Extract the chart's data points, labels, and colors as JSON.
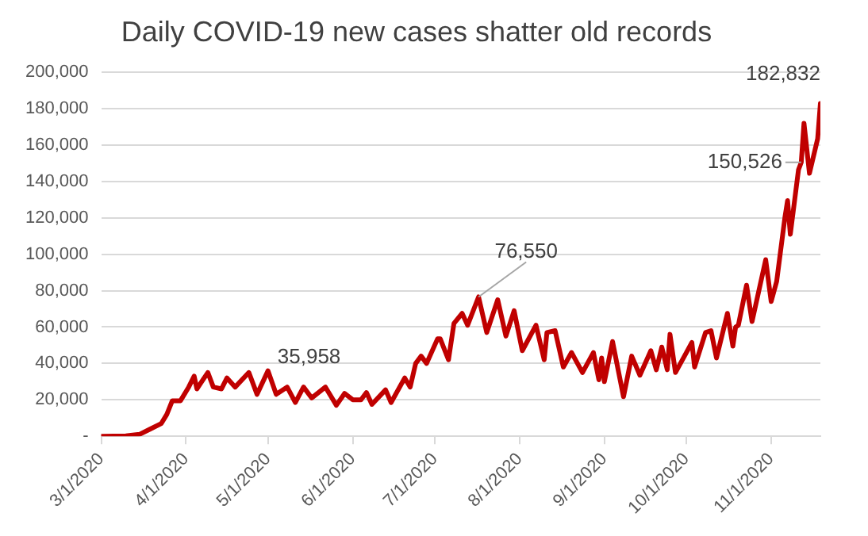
{
  "chart_data": {
    "type": "line",
    "title": "Daily COVID-19 new cases shatter old records",
    "x": [
      "2020-03-01",
      "2020-03-10",
      "2020-03-15",
      "2020-03-19",
      "2020-03-23",
      "2020-03-25",
      "2020-03-27",
      "2020-03-30",
      "2020-04-02",
      "2020-04-04",
      "2020-04-05",
      "2020-04-09",
      "2020-04-11",
      "2020-04-14",
      "2020-04-16",
      "2020-04-19",
      "2020-04-24",
      "2020-04-27",
      "2020-05-01",
      "2020-05-04",
      "2020-05-08",
      "2020-05-11",
      "2020-05-14",
      "2020-05-17",
      "2020-05-22",
      "2020-05-26",
      "2020-05-29",
      "2020-06-01",
      "2020-06-04",
      "2020-06-06",
      "2020-06-08",
      "2020-06-13",
      "2020-06-15",
      "2020-06-20",
      "2020-06-22",
      "2020-06-24",
      "2020-06-26",
      "2020-06-28",
      "2020-07-02",
      "2020-07-03",
      "2020-07-06",
      "2020-07-08",
      "2020-07-11",
      "2020-07-13",
      "2020-07-17",
      "2020-07-20",
      "2020-07-24",
      "2020-07-27",
      "2020-07-30",
      "2020-08-02",
      "2020-08-07",
      "2020-08-10",
      "2020-08-11",
      "2020-08-14",
      "2020-08-17",
      "2020-08-20",
      "2020-08-24",
      "2020-08-28",
      "2020-08-30",
      "2020-08-31",
      "2020-09-01",
      "2020-09-04",
      "2020-09-08",
      "2020-09-11",
      "2020-09-14",
      "2020-09-18",
      "2020-09-20",
      "2020-09-22",
      "2020-09-24",
      "2020-09-25",
      "2020-09-27",
      "2020-10-01",
      "2020-10-03",
      "2020-10-04",
      "2020-10-08",
      "2020-10-10",
      "2020-10-12",
      "2020-10-16",
      "2020-10-18",
      "2020-10-19",
      "2020-10-20",
      "2020-10-23",
      "2020-10-25",
      "2020-10-30",
      "2020-11-01",
      "2020-11-03",
      "2020-11-06",
      "2020-11-07",
      "2020-11-08",
      "2020-11-11",
      "2020-11-12",
      "2020-11-13",
      "2020-11-15",
      "2020-11-18",
      "2020-11-19"
    ],
    "series": [
      {
        "color": "#c00000",
        "values": [
          0,
          200,
          1000,
          4000,
          7000,
          12000,
          19500,
          19500,
          27000,
          33000,
          26000,
          35000,
          27000,
          26000,
          32000,
          27000,
          35000,
          23000,
          35958,
          23000,
          27000,
          18500,
          27000,
          21000,
          27000,
          17000,
          23500,
          20000,
          20000,
          24000,
          17500,
          25500,
          18500,
          32000,
          27000,
          40000,
          44000,
          40000,
          53500,
          53500,
          42000,
          62000,
          67500,
          61000,
          76550,
          57000,
          75000,
          55000,
          69000,
          47000,
          61000,
          42000,
          57000,
          58000,
          38000,
          46000,
          35000,
          46000,
          31000,
          43000,
          30000,
          52000,
          21700,
          44000,
          33500,
          47000,
          36500,
          49000,
          36500,
          56000,
          35000,
          46000,
          51500,
          38000,
          57000,
          58000,
          43000,
          67500,
          49500,
          60000,
          61000,
          83000,
          63000,
          97000,
          74000,
          85000,
          120000,
          129500,
          111000,
          146500,
          150526,
          172000,
          144500,
          163500,
          182832
        ]
      }
    ],
    "xlim": [
      "2020-03-01",
      "2020-11-19"
    ],
    "xticks": [
      {
        "value": "2020-03-01",
        "label": "3/1/2020"
      },
      {
        "value": "2020-04-01",
        "label": "4/1/2020"
      },
      {
        "value": "2020-05-01",
        "label": "5/1/2020"
      },
      {
        "value": "2020-06-01",
        "label": "6/1/2020"
      },
      {
        "value": "2020-07-01",
        "label": "7/1/2020"
      },
      {
        "value": "2020-08-01",
        "label": "8/1/2020"
      },
      {
        "value": "2020-09-01",
        "label": "9/1/2020"
      },
      {
        "value": "2020-10-01",
        "label": "10/1/2020"
      },
      {
        "value": "2020-11-01",
        "label": "11/1/2020"
      }
    ],
    "ylim": [
      0,
      200000
    ],
    "yticks": [
      {
        "value": 0,
        "label": "-"
      },
      {
        "value": 20000,
        "label": "20,000"
      },
      {
        "value": 40000,
        "label": "40,000"
      },
      {
        "value": 60000,
        "label": "60,000"
      },
      {
        "value": 80000,
        "label": "80,000"
      },
      {
        "value": 100000,
        "label": "100,000"
      },
      {
        "value": 120000,
        "label": "120,000"
      },
      {
        "value": 140000,
        "label": "140,000"
      },
      {
        "value": 160000,
        "label": "160,000"
      },
      {
        "value": 180000,
        "label": "180,000"
      },
      {
        "value": 200000,
        "label": "200,000"
      }
    ],
    "grid": "y",
    "legend": false,
    "marker": "none",
    "line_style": "solid",
    "annotations": [
      {
        "text": "35,958",
        "x": "2020-05-01",
        "y": 35958
      },
      {
        "text": "76,550",
        "x": "2020-07-17",
        "y": 76550
      },
      {
        "text": "150,526",
        "x": "2020-11-12",
        "y": 150526
      },
      {
        "text": "182,832",
        "x": "2020-11-19",
        "y": 182832
      }
    ]
  }
}
